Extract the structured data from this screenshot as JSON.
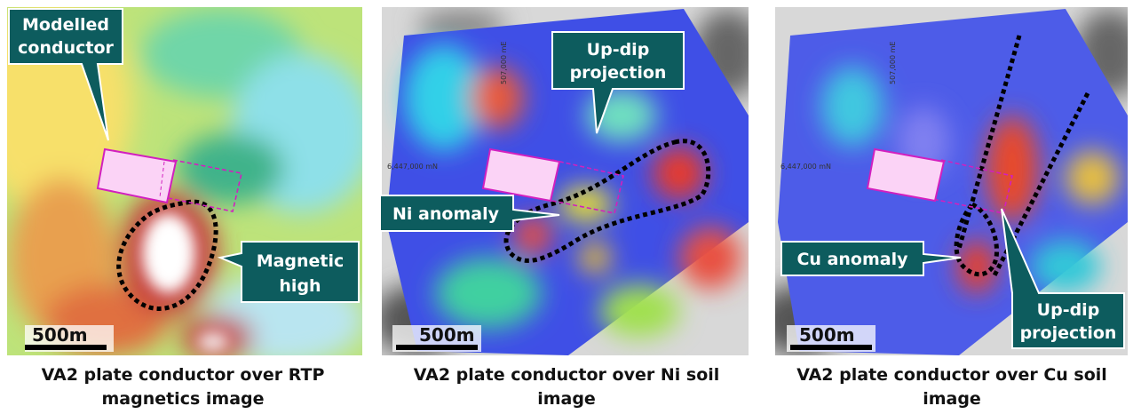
{
  "panels": [
    {
      "callouts": [
        {
          "lines": [
            "Modelled",
            "conductor"
          ]
        },
        {
          "lines": [
            "Magnetic",
            "high"
          ]
        }
      ],
      "scale": "500m",
      "caption": [
        "VA2 plate conductor over RTP",
        "magnetics image"
      ]
    },
    {
      "callouts": [
        {
          "lines": [
            "Up-dip",
            "projection"
          ]
        },
        {
          "lines": [
            "Ni anomaly"
          ]
        }
      ],
      "easting": "507,000 mE",
      "northing": "6,447,000 mN",
      "scale": "500m",
      "caption": [
        "VA2 plate conductor over Ni soil",
        "image"
      ]
    },
    {
      "callouts": [
        {
          "lines": [
            "Cu anomaly"
          ]
        },
        {
          "lines": [
            "Up-dip",
            "projection"
          ]
        }
      ],
      "easting": "507,000 mE",
      "northing": "6,447,000 mN",
      "scale": "500m",
      "caption": [
        "VA2 plate conductor over Cu soil",
        "image"
      ]
    }
  ]
}
